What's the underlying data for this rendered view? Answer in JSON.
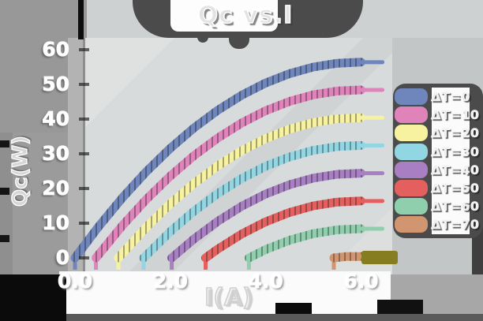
{
  "title": "Qc vs.I",
  "colors": {
    "outer_background": "#9b9b9b",
    "panel_background": "#d8dbdb",
    "dark_blob": "#4b4b4b",
    "text": "#ffffff",
    "olive_artifact": "#857d20"
  },
  "chart_data": {
    "type": "line",
    "title": "Qc vs.I",
    "xlabel": "I(A)",
    "ylabel": "Qc(W)",
    "xlim": [
      0,
      6.5
    ],
    "ylim": [
      0,
      60
    ],
    "grid": false,
    "legend_position": "right",
    "xticks": {
      "values": [
        0,
        2,
        4,
        6
      ],
      "labels": [
        "0.0",
        "2.0",
        "4.0",
        "6.0"
      ]
    },
    "yticks": {
      "values": [
        0,
        10,
        20,
        30,
        40,
        50,
        60
      ],
      "labels": [
        "0",
        "10",
        "20",
        "30",
        "40",
        "50",
        "60"
      ]
    },
    "series": [
      {
        "name": "ΔT=0",
        "color": "#6e86bb",
        "points": [
          [
            0,
            0
          ],
          [
            0.5,
            9.1
          ],
          [
            1,
            17.4
          ],
          [
            1.5,
            24.9
          ],
          [
            2,
            31.6
          ],
          [
            2.5,
            37.5
          ],
          [
            3,
            42.6
          ],
          [
            3.5,
            46.9
          ],
          [
            4,
            50.4
          ],
          [
            4.5,
            53.1
          ],
          [
            5,
            55.0
          ],
          [
            5.5,
            56.1
          ],
          [
            6,
            56.4
          ]
        ]
      },
      {
        "name": "ΔT=10",
        "color": "#e083ba",
        "points": [
          [
            0.44,
            0
          ],
          [
            1,
            9.4
          ],
          [
            1.5,
            16.9
          ],
          [
            2,
            23.6
          ],
          [
            2.5,
            29.5
          ],
          [
            3,
            34.6
          ],
          [
            3.5,
            38.9
          ],
          [
            4,
            42.4
          ],
          [
            4.5,
            45.1
          ],
          [
            5,
            47.0
          ],
          [
            5.5,
            48.1
          ],
          [
            6,
            48.4
          ]
        ]
      },
      {
        "name": "ΔT=20",
        "color": "#f6f2a0",
        "points": [
          [
            0.91,
            0
          ],
          [
            1.5,
            8.9
          ],
          [
            2,
            15.6
          ],
          [
            2.5,
            21.5
          ],
          [
            3,
            26.6
          ],
          [
            3.5,
            30.9
          ],
          [
            4,
            34.4
          ],
          [
            4.5,
            37.1
          ],
          [
            5,
            39.0
          ],
          [
            5.5,
            40.1
          ],
          [
            6,
            40.4
          ]
        ]
      },
      {
        "name": "ΔT=30",
        "color": "#92d5e3",
        "points": [
          [
            1.44,
            0
          ],
          [
            2,
            7.6
          ],
          [
            2.5,
            13.5
          ],
          [
            3,
            18.6
          ],
          [
            3.5,
            22.9
          ],
          [
            4,
            26.4
          ],
          [
            4.5,
            29.1
          ],
          [
            5,
            31.0
          ],
          [
            5.5,
            32.1
          ],
          [
            6,
            32.4
          ]
        ]
      },
      {
        "name": "ΔT=40",
        "color": "#a77fc2",
        "points": [
          [
            2.03,
            0
          ],
          [
            2.5,
            5.5
          ],
          [
            3,
            10.6
          ],
          [
            3.5,
            14.9
          ],
          [
            4,
            18.4
          ],
          [
            4.5,
            21.1
          ],
          [
            5,
            23.0
          ],
          [
            5.5,
            24.1
          ],
          [
            6,
            24.4
          ]
        ]
      },
      {
        "name": "ΔT=50",
        "color": "#e4605f",
        "points": [
          [
            2.74,
            0
          ],
          [
            3,
            2.6
          ],
          [
            3.5,
            6.9
          ],
          [
            4,
            10.4
          ],
          [
            4.5,
            13.1
          ],
          [
            5,
            15.0
          ],
          [
            5.5,
            16.1
          ],
          [
            6,
            16.4
          ]
        ]
      },
      {
        "name": "ΔT=60",
        "color": "#8fcfad",
        "points": [
          [
            3.65,
            0
          ],
          [
            4,
            2.4
          ],
          [
            4.5,
            5.1
          ],
          [
            5,
            7.0
          ],
          [
            5.5,
            8.1
          ],
          [
            6,
            8.4
          ]
        ]
      },
      {
        "name": "ΔT=70",
        "color": "#d1966f",
        "points": [
          [
            5.43,
            0
          ],
          [
            5.7,
            0.4
          ],
          [
            6,
            0.4
          ]
        ]
      }
    ]
  }
}
